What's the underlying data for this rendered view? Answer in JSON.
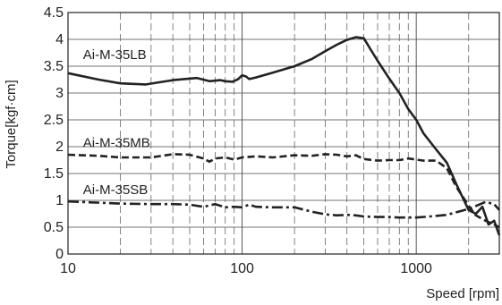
{
  "chart_data": {
    "type": "line",
    "xscale": "log",
    "xlim": [
      10,
      3000
    ],
    "ylim": [
      0,
      4.5
    ],
    "xlabel": "Speed [rpm]",
    "ylabel": "Torque[kgf·cm]",
    "x_ticks": [
      10,
      100,
      1000
    ],
    "x_tick_labels": [
      "10",
      "100",
      "1000"
    ],
    "y_ticks": [
      0,
      0.5,
      1,
      1.5,
      2,
      2.5,
      3,
      3.5,
      4,
      4.5
    ],
    "y_tick_labels": [
      "0",
      "0.5",
      "1",
      "1.5",
      "2",
      "2.5",
      "3",
      "3.5",
      "4",
      "4.5"
    ],
    "grid": {
      "vertical_minor": true,
      "vertical_style": "dashed",
      "horizontal": true,
      "horizontal_style": "solid"
    },
    "series": [
      {
        "name": "Ai-M-35LB",
        "line_style": "solid",
        "color": "#222222",
        "x": [
          10,
          15,
          20,
          28,
          40,
          55,
          65,
          75,
          80,
          88,
          95,
          100,
          105,
          110,
          120,
          150,
          200,
          250,
          300,
          350,
          400,
          450,
          500,
          550,
          600,
          700,
          800,
          900,
          1000,
          1100,
          1300,
          1500,
          1700,
          2000,
          2200,
          2400,
          2600,
          2800,
          3000
        ],
        "y": [
          3.37,
          3.25,
          3.18,
          3.16,
          3.24,
          3.28,
          3.22,
          3.24,
          3.22,
          3.21,
          3.26,
          3.33,
          3.31,
          3.26,
          3.29,
          3.38,
          3.5,
          3.63,
          3.78,
          3.9,
          3.99,
          4.04,
          4.02,
          3.8,
          3.6,
          3.27,
          3.0,
          2.7,
          2.5,
          2.25,
          1.95,
          1.7,
          1.3,
          0.82,
          0.75,
          0.88,
          0.55,
          0.62,
          0.35
        ]
      },
      {
        "name": "Ai-M-35MB",
        "line_style": "dashed",
        "color": "#222222",
        "x": [
          10,
          15,
          20,
          30,
          40,
          50,
          60,
          65,
          70,
          80,
          90,
          100,
          120,
          150,
          200,
          250,
          300,
          350,
          400,
          450,
          500,
          600,
          700,
          800,
          900,
          1000,
          1100,
          1300,
          1500,
          1700,
          2000,
          2200,
          2500,
          2800,
          3000
        ],
        "y": [
          1.85,
          1.83,
          1.8,
          1.8,
          1.86,
          1.85,
          1.78,
          1.72,
          1.78,
          1.8,
          1.76,
          1.8,
          1.82,
          1.8,
          1.84,
          1.83,
          1.86,
          1.85,
          1.82,
          1.84,
          1.77,
          1.74,
          1.75,
          1.75,
          1.78,
          1.76,
          1.74,
          1.74,
          1.6,
          1.25,
          0.9,
          0.72,
          0.62,
          0.55,
          0.5
        ]
      },
      {
        "name": "Ai-M-35SB",
        "line_style": "dashdot",
        "color": "#222222",
        "x": [
          10,
          20,
          30,
          40,
          50,
          60,
          70,
          80,
          90,
          100,
          110,
          120,
          150,
          200,
          250,
          300,
          350,
          400,
          450,
          500,
          600,
          700,
          800,
          900,
          1000,
          1200,
          1500,
          2000,
          2500,
          2800,
          3000
        ],
        "y": [
          0.98,
          0.94,
          0.93,
          0.93,
          0.92,
          0.88,
          0.93,
          0.87,
          0.88,
          0.87,
          0.92,
          0.88,
          0.87,
          0.87,
          0.79,
          0.74,
          0.72,
          0.73,
          0.72,
          0.7,
          0.69,
          0.69,
          0.68,
          0.68,
          0.68,
          0.7,
          0.73,
          0.84,
          0.97,
          0.93,
          0.82
        ]
      }
    ]
  }
}
